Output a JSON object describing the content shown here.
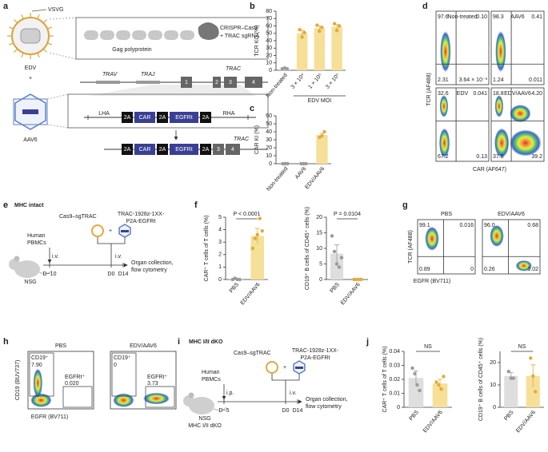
{
  "panel_labels": [
    "a",
    "b",
    "c",
    "d",
    "e",
    "f",
    "g",
    "h",
    "i",
    "j"
  ],
  "panel_a": {
    "vsvg": "VSVG",
    "edv": "EDV",
    "plus": "+",
    "aav6": "AAV6",
    "gag": "Gag polyprotein",
    "cargo": [
      "CRISPR–Cas9",
      "+ TRAC sgRNA"
    ],
    "trav": "TRAV",
    "traj": "TRAJ",
    "trac": "TRAC",
    "exons": [
      "1",
      "2",
      "3",
      "4"
    ],
    "donor": [
      "LHA",
      "2A",
      "CAR",
      "2A",
      "EGFRt",
      "2A",
      "RHA"
    ],
    "edited": [
      "2A",
      "CAR",
      "2A",
      "EGFRt",
      "2A",
      "3",
      "4"
    ],
    "trac_edited": "TRAC"
  },
  "panel_e": {
    "title": "MHC intact",
    "cas9": "Cas9–sgTRAC",
    "construct": [
      "TRAC-1928z-1XX-",
      "P2A-EGFRt"
    ],
    "plus": "+",
    "pbmc": [
      "Human",
      "PBMCs"
    ],
    "route1": "i.v.",
    "route2": "i.v.",
    "mouse": [
      "NSG"
    ],
    "days": [
      "D−10",
      "D0",
      "D14"
    ],
    "readout": [
      "Organ collection,",
      "flow cytometry"
    ]
  },
  "panel_i": {
    "title": "MHC I/II dKO",
    "cas9": "Cas9–sgTRAC",
    "construct": [
      "TRAC-1928z-1XX-",
      "P2A-EGFRt"
    ],
    "plus": "+",
    "pbmc": [
      "Human",
      "PBMCs"
    ],
    "route1": "i.p.",
    "route2": "i.v.",
    "mouse": [
      "NSG",
      "MHC I/II dKO"
    ],
    "days": [
      "D−5",
      "D0",
      "D14"
    ],
    "readout": [
      "Organ collection,",
      "flow cytometry"
    ]
  },
  "flow_d": {
    "y_label": "TCR (AF488)",
    "x_label": "CAR (AF647)",
    "plots": [
      {
        "title": "Non-treated",
        "quadrants": [
          "97.6",
          "0.10",
          "2.31",
          "3.64 × 10⁻³"
        ]
      },
      {
        "title": "AAV6",
        "quadrants": [
          "98.3",
          "0.41",
          "1.24",
          "0.011"
        ]
      },
      {
        "title": "EDV",
        "quadrants": [
          "32.6",
          "0.041",
          "67.2",
          "0.13"
        ]
      },
      {
        "title": "EDV/AAV6",
        "quadrants": [
          "18.8",
          "4.20",
          "37.8",
          "39.2"
        ]
      }
    ]
  },
  "flow_g": {
    "y_label": "TCR (AF488)",
    "x_label": "EGFR (BV711)",
    "plots": [
      {
        "title": "PBS",
        "quadrants": [
          "99.1",
          "0.016",
          "0.89",
          "0"
        ]
      },
      {
        "title": "EDV/AAV6",
        "quadrants": [
          "96.0",
          "0.68",
          "0.26",
          "3.02"
        ]
      }
    ]
  },
  "flow_h": {
    "y_label": "CD19 (BUV737)",
    "x_label": "EGFR (BV711)",
    "plots": [
      {
        "title": "PBS",
        "gate_a": "CD19⁺",
        "value_a": "7.90",
        "gate_b": "EGFRt⁺",
        "value_b": "0.020"
      },
      {
        "title": "EDV/AAV6",
        "gate_a": "CD19⁺",
        "value_a": "0",
        "gate_b": "EGFRt⁺",
        "value_b": "3.73"
      }
    ]
  },
  "chart_data": [
    {
      "type": "bar",
      "y_label": "TCR KO (%)",
      "x_label": "EDV MOI",
      "categories": [
        "Non-treated",
        "3 × 10⁴",
        "1 × 10⁵",
        "3 × 10⁵"
      ],
      "values": [
        2,
        50,
        57,
        59
      ],
      "errors": [
        0.5,
        4,
        3,
        3
      ],
      "points": [
        [
          2,
          3,
          2
        ],
        [
          55,
          45,
          51
        ],
        [
          61,
          53,
          58
        ],
        [
          63,
          54,
          60
        ]
      ],
      "bar_colors": [
        "#dedede",
        "#f6df97",
        "#f6df97",
        "#f6df97"
      ],
      "point_colors": [
        "#9a9a9a",
        "#e2aa3c",
        "#e2aa3c",
        "#e2aa3c"
      ],
      "ylim": [
        0,
        80
      ],
      "yticks": [
        0,
        10,
        20,
        30,
        40,
        50,
        60,
        70,
        80
      ]
    },
    {
      "type": "bar",
      "y_label": "CAR KI (%)",
      "categories": [
        "Non-treated",
        "AAV6",
        "EDV/AAV6"
      ],
      "values": [
        0,
        0,
        36
      ],
      "errors": [
        0,
        0,
        2
      ],
      "points": [
        [
          0,
          0,
          0
        ],
        [
          0,
          0,
          0
        ],
        [
          33,
          35,
          40
        ]
      ],
      "bar_colors": [
        "#dedede",
        "#dedede",
        "#f6df97"
      ],
      "point_colors": [
        "#9a9a9a",
        "#9a9a9a",
        "#e2aa3c"
      ],
      "ylim": [
        0,
        60
      ],
      "yticks": [
        0,
        10,
        20,
        30,
        40,
        50,
        60
      ]
    },
    {
      "type": "bar",
      "y_label": "CAR⁺ T cells of T cells (%)",
      "annotation": "P < 0.0001",
      "categories": [
        "PBS",
        "EDV/AAV6"
      ],
      "values": [
        0.05,
        3.5
      ],
      "errors": [
        0.05,
        0.6
      ],
      "points": [
        [
          0,
          0.1,
          0,
          0
        ],
        [
          2.5,
          3.3,
          3.6,
          4.9,
          3.9
        ]
      ],
      "bar_colors": [
        "#dedede",
        "#f6df97"
      ],
      "point_colors": [
        "#9a9a9a",
        "#e2aa3c"
      ],
      "ylim": [
        0,
        5
      ],
      "yticks": [
        0,
        1,
        2,
        3,
        4,
        5
      ]
    },
    {
      "type": "bar",
      "y_label": "CD19⁺ B cells of CD45⁺ cells (%)",
      "annotation": "P = 0.0104",
      "categories": [
        "PBS",
        "EDV/AAV6"
      ],
      "values": [
        8.3,
        0
      ],
      "errors": [
        2.8,
        0
      ],
      "points": [
        [
          14,
          9,
          5,
          4,
          7
        ],
        [
          0,
          0,
          0,
          0
        ]
      ],
      "bar_colors": [
        "#dedede",
        "#f6df97"
      ],
      "point_colors": [
        "#9a9a9a",
        "#e2aa3c"
      ],
      "ylim": [
        0,
        20
      ],
      "yticks": [
        0,
        5,
        10,
        15,
        20
      ]
    },
    {
      "type": "bar",
      "y_label": "CAR⁺ T cells of T cells (%)",
      "annotation": "NS",
      "categories": [
        "PBS",
        "EDV/AAV6"
      ],
      "values": [
        0.021,
        0.017
      ],
      "errors": [
        0.005,
        0.003
      ],
      "points": [
        [
          0.028,
          0.024,
          0.016,
          0.012
        ],
        [
          0.018,
          0.016,
          0.013,
          0.022
        ]
      ],
      "bar_colors": [
        "#dedede",
        "#f6df97"
      ],
      "point_colors": [
        "#9a9a9a",
        "#e2aa3c"
      ],
      "ylim": [
        0,
        0.04
      ],
      "yticks": [
        0,
        0.01,
        0.02,
        0.03,
        0.04
      ]
    },
    {
      "type": "bar",
      "y_label": "CD19⁺ B cells of CD45⁺ cells (%)",
      "annotation": "NS",
      "categories": [
        "PBS",
        "EDV/AAV6"
      ],
      "values": [
        14,
        14
      ],
      "errors": [
        1.5,
        5
      ],
      "points": [
        [
          16,
          13,
          13
        ],
        [
          22,
          14,
          7
        ]
      ],
      "bar_colors": [
        "#dedede",
        "#f6df97"
      ],
      "point_colors": [
        "#9a9a9a",
        "#e2aa3c"
      ],
      "ylim": [
        0,
        25
      ],
      "yticks": [
        0,
        10,
        20
      ]
    }
  ]
}
